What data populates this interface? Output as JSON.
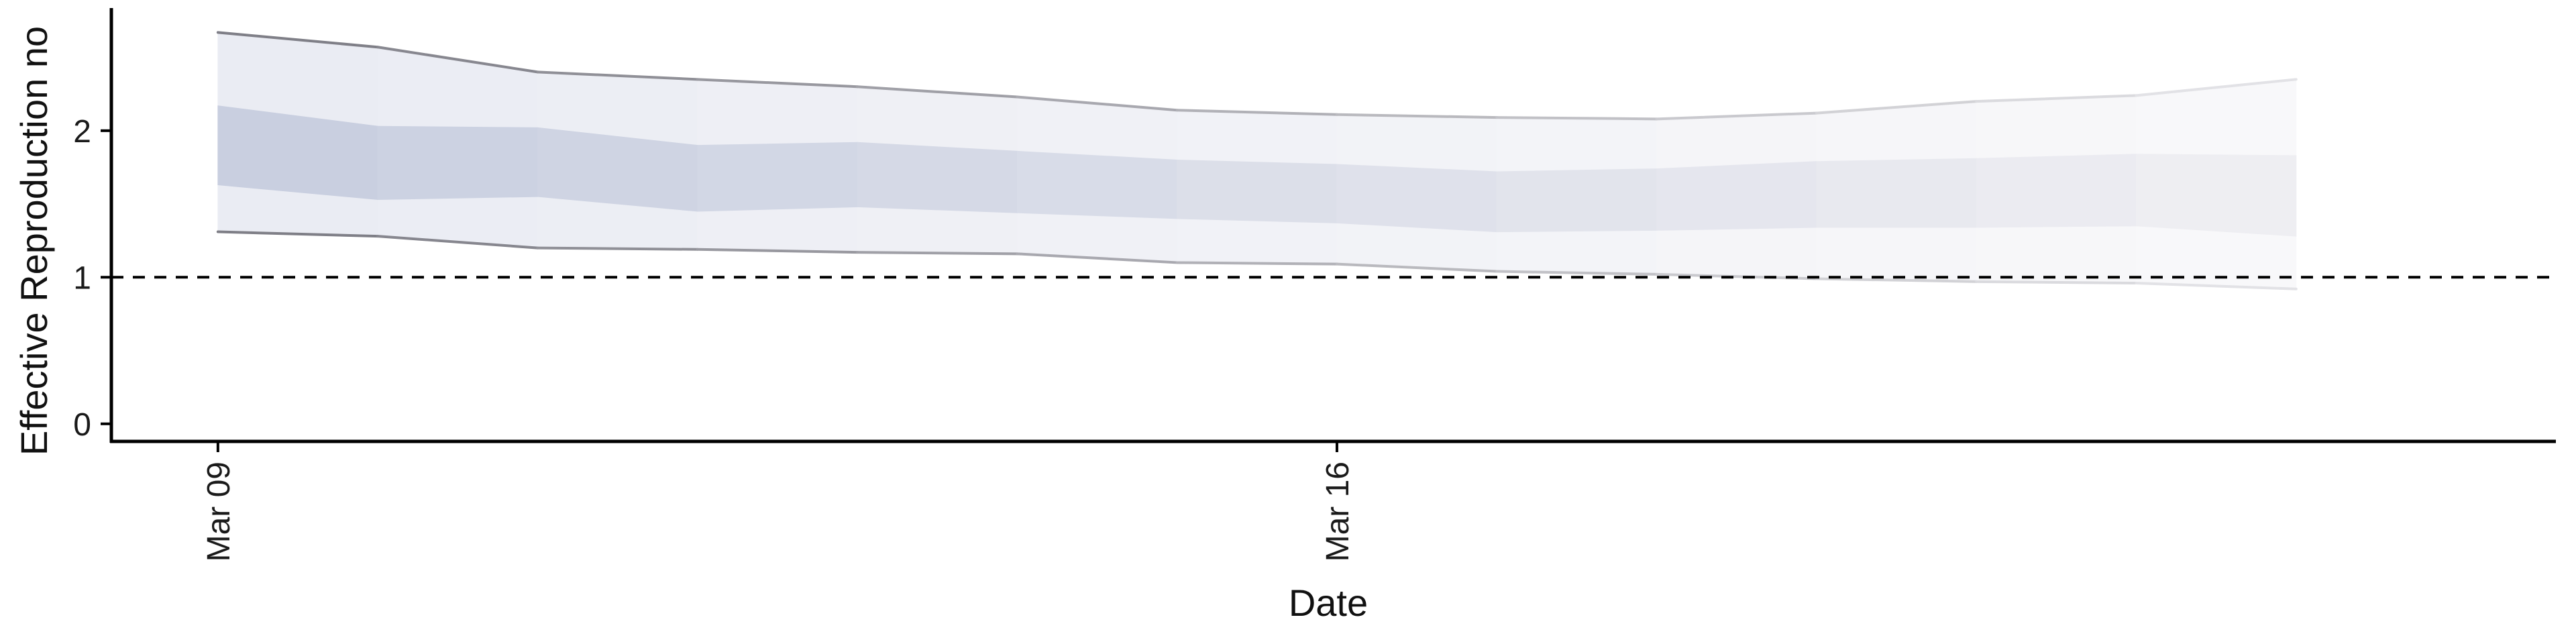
{
  "chart_data": {
    "type": "area",
    "title": "",
    "xlabel": "Date",
    "ylabel": "Effective Reproduction no",
    "x_dates": [
      "2020-03-09",
      "2020-03-10",
      "2020-03-11",
      "2020-03-12",
      "2020-03-13",
      "2020-03-14",
      "2020-03-15",
      "2020-03-16",
      "2020-03-17",
      "2020-03-18",
      "2020-03-19",
      "2020-03-20",
      "2020-03-21",
      "2020-03-22"
    ],
    "x_ticks": [
      {
        "date": "2020-03-09",
        "label": "Mar 09"
      },
      {
        "date": "2020-03-16",
        "label": "Mar 16"
      }
    ],
    "y_ticks": [
      0,
      1,
      2
    ],
    "y_tick_labels": [
      "0",
      "1",
      "2"
    ],
    "ylim": [
      -0.12,
      2.8
    ],
    "xlim": [
      "2020-03-08T08:00",
      "2020-03-23T15:00"
    ],
    "reference_line": {
      "y": 1,
      "style": "dashed"
    },
    "series": [
      {
        "type": "band",
        "role": "outer interval",
        "upper": [
          2.67,
          2.57,
          2.4,
          2.35,
          2.3,
          2.23,
          2.14,
          2.11,
          2.09,
          2.08,
          2.12,
          2.2,
          2.24,
          2.35
        ],
        "lower": [
          1.31,
          1.28,
          1.2,
          1.19,
          1.17,
          1.16,
          1.1,
          1.09,
          1.04,
          1.02,
          0.99,
          0.97,
          0.96,
          0.92
        ]
      },
      {
        "type": "band",
        "role": "inner interval",
        "upper": [
          2.17,
          2.03,
          2.02,
          1.9,
          1.92,
          1.86,
          1.8,
          1.77,
          1.72,
          1.74,
          1.79,
          1.81,
          1.84,
          1.83
        ],
        "lower": [
          1.63,
          1.53,
          1.55,
          1.45,
          1.48,
          1.44,
          1.4,
          1.37,
          1.31,
          1.32,
          1.34,
          1.34,
          1.35,
          1.28
        ]
      }
    ],
    "colors": {
      "inner_band_start": "#c9cfe0",
      "inner_band_end": "#eeeef2",
      "outer_band_start": "#eaecf3",
      "outer_band_end": "#f8f8fa",
      "outer_band_line_start": "#7f7f87",
      "outer_band_line_end": "#e2e2e6",
      "axis": "#000000",
      "reference_line": "#000000"
    }
  }
}
